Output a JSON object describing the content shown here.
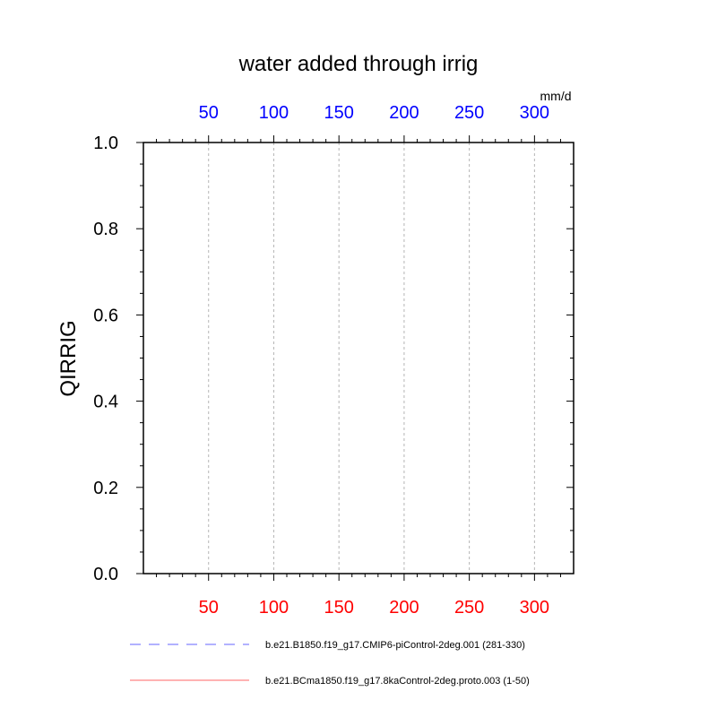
{
  "chart_data": {
    "type": "line",
    "title": "water added through irrig",
    "ylabel": "QIRRIG",
    "top_axis_unit": "mm/d",
    "xlim": [
      0,
      330
    ],
    "ylim": [
      0,
      1
    ],
    "x_ticks": [
      50,
      100,
      150,
      200,
      250,
      300
    ],
    "y_ticks": [
      0.0,
      0.2,
      0.4,
      0.6,
      0.8,
      1.0
    ],
    "y_tick_labels": [
      "0.0",
      "0.2",
      "0.4",
      "0.6",
      "0.8",
      "1.0"
    ],
    "x_minor_step": 10,
    "y_minor_step": 0.05,
    "grid_x": true,
    "grid_y": false,
    "top_tick_color": "#0000ff",
    "bottom_tick_color": "#ff0000",
    "series": [
      {
        "name": "b.e21.B1850.f19_g17.CMIP6-piControl-2deg.001 (281-330)",
        "color": "#0000ff",
        "dash": "dashed",
        "x": [
          0,
          50
        ],
        "y": [
          0,
          0
        ]
      },
      {
        "name": "b.e21.BCma1850.f19_g17.8kaControl-2deg.proto.003 (1-50)",
        "color": "#ff0000",
        "dash": "solid",
        "x": [
          0,
          50
        ],
        "y": [
          0,
          0
        ]
      }
    ]
  }
}
